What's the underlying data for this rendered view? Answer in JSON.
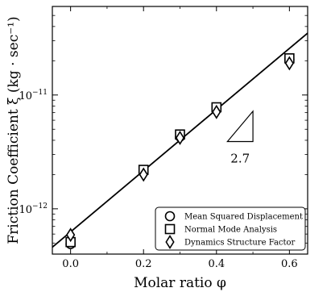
{
  "chart_data": {
    "type": "scatter",
    "title": "",
    "xlabel": "Molar ratio φ",
    "ylabel": "Friction Coefficient ξ (kg · sec⁻¹)",
    "xlim": [
      -0.05,
      0.65
    ],
    "ylim": [
      4e-13,
      6e-11
    ],
    "yscale": "log",
    "x_ticks": [
      0.0,
      0.2,
      0.4,
      0.6
    ],
    "x_tick_labels": [
      "0.0",
      "0.2",
      "0.4",
      "0.6"
    ],
    "y_ticks": [
      1e-12,
      1e-11
    ],
    "y_tick_base": "10",
    "y_tick_exponents": [
      "−12",
      "−11"
    ],
    "grid": false,
    "legend_position": "bottom-right",
    "colors": {
      "marker_face": "#ffffff",
      "marker_edge": "#000000",
      "line": "#000000"
    },
    "series": [
      {
        "name": "Mean Squared Displacement",
        "marker": "circle",
        "x": [
          0.0,
          0.2,
          0.3,
          0.4,
          0.6
        ],
        "y": [
          4.9e-13,
          2.1e-12,
          4.3e-12,
          7.6e-12,
          2.05e-11
        ]
      },
      {
        "name": "Normal Mode Analysis",
        "marker": "square",
        "x": [
          0.0,
          0.2,
          0.3,
          0.4,
          0.6
        ],
        "y": [
          5.1e-13,
          2.2e-12,
          4.5e-12,
          7.8e-12,
          2.1e-11
        ]
      },
      {
        "name": "Dynamics Structure Factor",
        "marker": "diamond",
        "x": [
          0.0,
          0.2,
          0.3,
          0.4,
          0.6
        ],
        "y": [
          5.9e-13,
          2e-12,
          4.2e-12,
          7.1e-12,
          1.9e-11
        ]
      }
    ],
    "fit_line": {
      "x": [
        -0.05,
        0.65
      ],
      "y": [
        4.6e-13,
        3.5e-11
      ]
    },
    "slope_annotation": {
      "label": "2.7",
      "triangle": {
        "x": [
          0.43,
          0.5,
          0.5
        ],
        "y": [
          3.9e-12,
          3.9e-12,
          7.2e-12
        ]
      },
      "label_pos": {
        "x": 0.465,
        "y": 2.55e-12
      }
    }
  }
}
